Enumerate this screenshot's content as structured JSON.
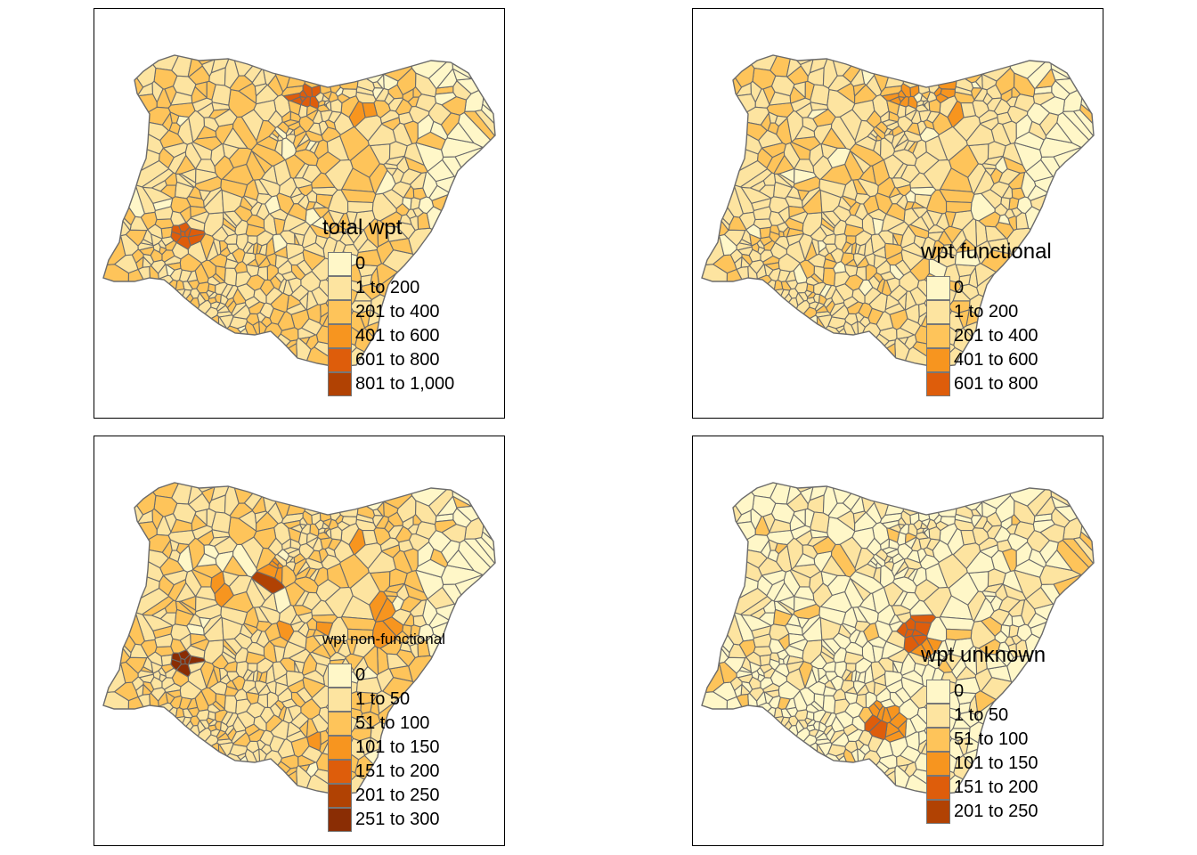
{
  "colors": {
    "border": "#6b6b6b",
    "frame": "#000000",
    "palette": [
      "#fff7c8",
      "#fde4a0",
      "#fec45a",
      "#f7951f",
      "#de5d0b",
      "#b14203",
      "#8a2d04"
    ]
  },
  "maps": [
    {
      "id": "total-wpt",
      "legend_title": "total wpt",
      "classes": [
        "0",
        "1 to 200",
        "201 to 400",
        "401 to 600",
        "601 to 800",
        "801 to 1,000"
      ]
    },
    {
      "id": "wpt-functional",
      "legend_title": "wpt functional",
      "classes": [
        "0",
        "1 to 200",
        "201 to 400",
        "401 to 600",
        "601 to 800"
      ]
    },
    {
      "id": "wpt-non-functional",
      "legend_title": "wpt non-functional",
      "classes": [
        "0",
        "1 to 50",
        "51 to 100",
        "101 to 150",
        "151 to 200",
        "201 to 250",
        "251 to 300"
      ]
    },
    {
      "id": "wpt-unknown",
      "legend_title": "wpt unknown",
      "classes": [
        "0",
        "1 to 50",
        "51 to 100",
        "101 to 150",
        "151 to 200",
        "201 to 250"
      ]
    }
  ]
}
